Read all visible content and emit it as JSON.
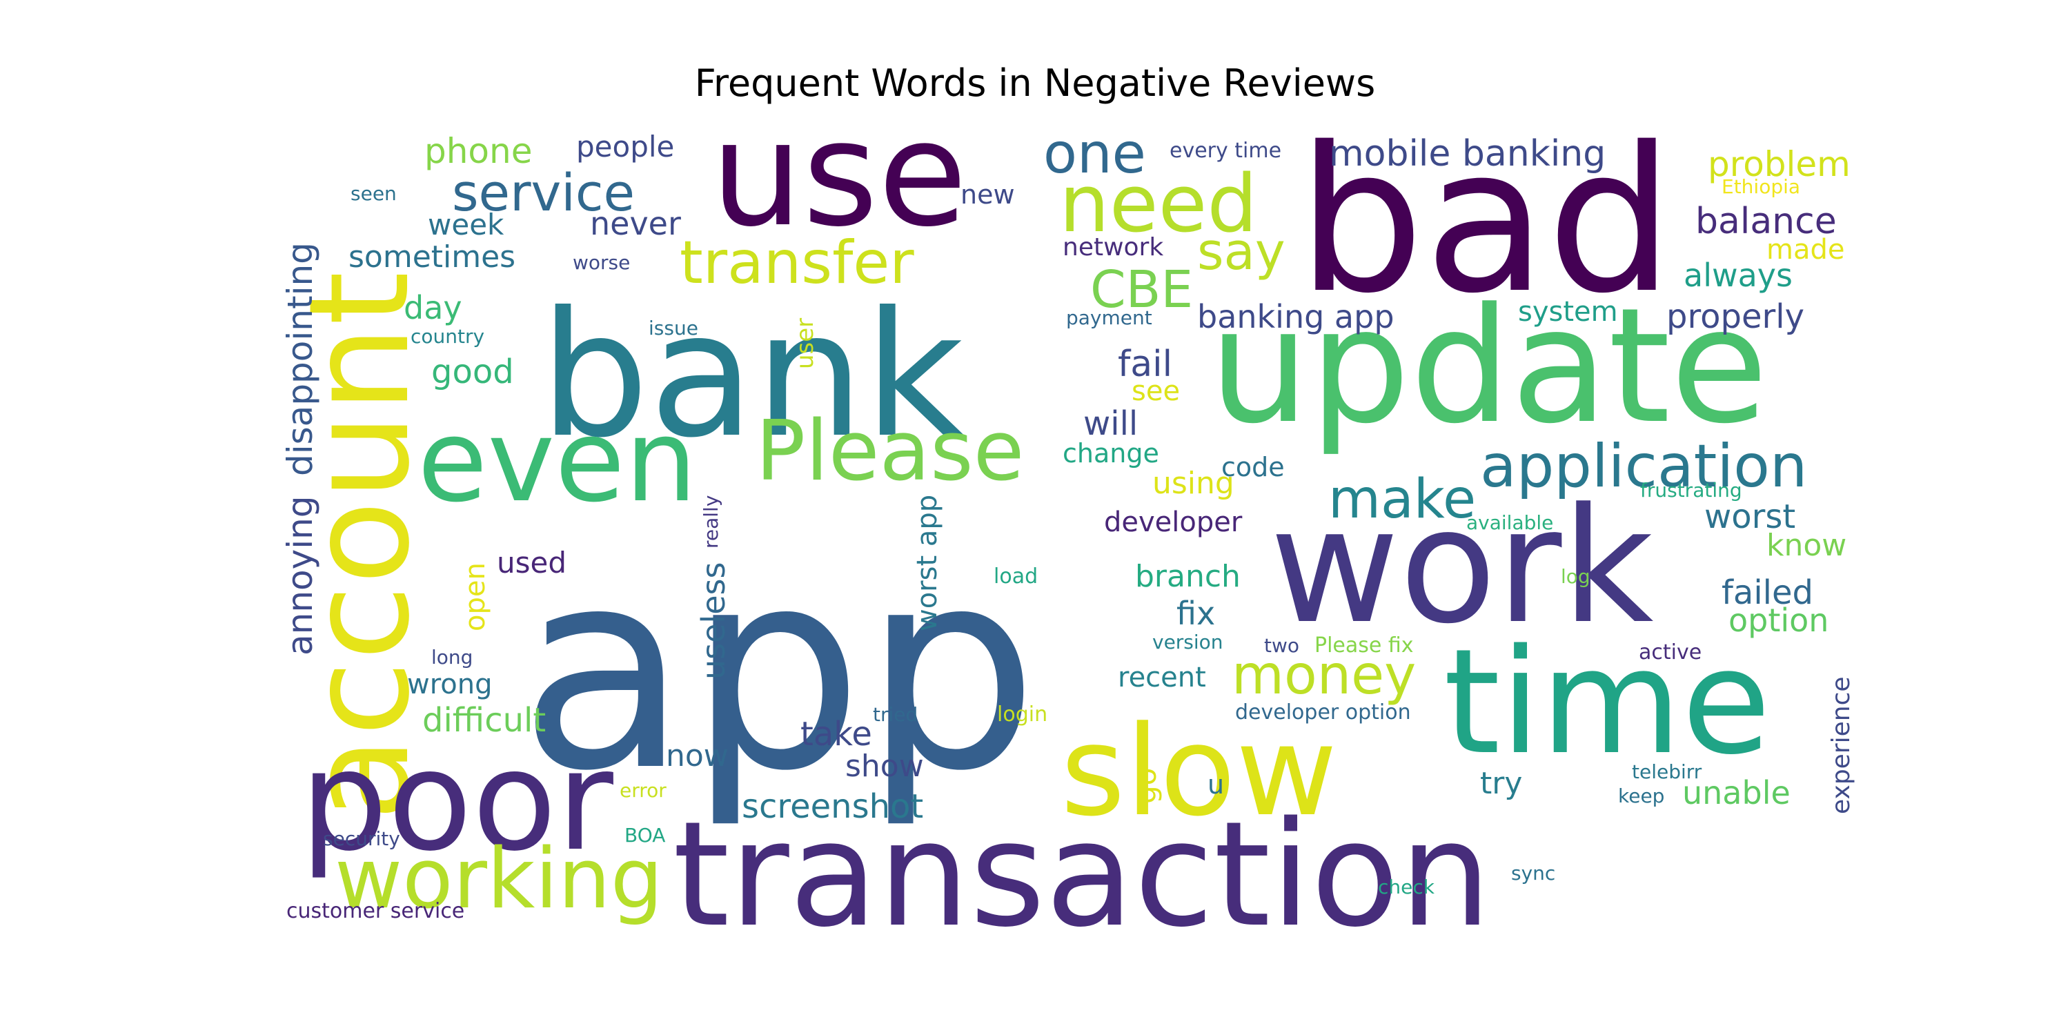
{
  "chart_data": {
    "type": "wordcloud",
    "title": "Frequent Words in Negative Reviews",
    "colormap": "viridis",
    "background": "#ffffff",
    "words": [
      {
        "text": "app",
        "color": "#355f8d"
      },
      {
        "text": "bank",
        "color": "#287d8e"
      },
      {
        "text": "bad",
        "color": "#440154"
      },
      {
        "text": "update",
        "color": "#4ac16d"
      },
      {
        "text": "transaction",
        "color": "#472d7b"
      },
      {
        "text": "use",
        "color": "#440154"
      },
      {
        "text": "account",
        "color": "#e5e419"
      },
      {
        "text": "work",
        "color": "#443983"
      },
      {
        "text": "time",
        "color": "#20a486"
      },
      {
        "text": "poor",
        "color": "#472d7b"
      },
      {
        "text": "even",
        "color": "#3bbb75"
      },
      {
        "text": "slow",
        "color": "#dde318"
      },
      {
        "text": "working",
        "color": "#b5de2b"
      },
      {
        "text": "Please",
        "color": "#7ad151"
      },
      {
        "text": "need",
        "color": "#b5de2b"
      },
      {
        "text": "application",
        "color": "#2a788e"
      },
      {
        "text": "transfer",
        "color": "#cde11d"
      },
      {
        "text": "service",
        "color": "#31688e"
      },
      {
        "text": "one",
        "color": "#31688e"
      },
      {
        "text": "money",
        "color": "#bddf26"
      },
      {
        "text": "make",
        "color": "#25858e"
      },
      {
        "text": "CBE",
        "color": "#7ad151"
      },
      {
        "text": "say",
        "color": "#bddf26"
      },
      {
        "text": "mobile banking",
        "color": "#3e4a89"
      },
      {
        "text": "screenshot",
        "color": "#2a788e"
      },
      {
        "text": "disappointing",
        "color": "#38588c"
      },
      {
        "text": "annoying",
        "color": "#3e4a89"
      },
      {
        "text": "useless",
        "color": "#31688e"
      },
      {
        "text": "worst app",
        "color": "#2a788e"
      },
      {
        "text": "problem",
        "color": "#d2e21b"
      },
      {
        "text": "balance",
        "color": "#472d7b"
      },
      {
        "text": "difficult",
        "color": "#6ccd5a"
      },
      {
        "text": "banking app",
        "color": "#3e4a89"
      },
      {
        "text": "properly",
        "color": "#3e4a89"
      },
      {
        "text": "application",
        "color": "#2a788e"
      },
      {
        "text": "phone",
        "color": "#86d549"
      },
      {
        "text": "people",
        "color": "#3e4a89"
      },
      {
        "text": "never",
        "color": "#3e4a89"
      },
      {
        "text": "week",
        "color": "#2c728e"
      },
      {
        "text": "sometimes",
        "color": "#2c728e"
      },
      {
        "text": "day",
        "color": "#3bbb75"
      },
      {
        "text": "good",
        "color": "#35b779"
      },
      {
        "text": "fail",
        "color": "#3e4a89"
      },
      {
        "text": "see",
        "color": "#dde318"
      },
      {
        "text": "will",
        "color": "#3e4a89"
      },
      {
        "text": "change",
        "color": "#22a785"
      },
      {
        "text": "code",
        "color": "#2c728e"
      },
      {
        "text": "using",
        "color": "#dde318"
      },
      {
        "text": "developer",
        "color": "#482677"
      },
      {
        "text": "branch",
        "color": "#25ab82"
      },
      {
        "text": "fix",
        "color": "#2c728e"
      },
      {
        "text": "recent",
        "color": "#26828e"
      },
      {
        "text": "take",
        "color": "#3e4a89"
      },
      {
        "text": "show",
        "color": "#3e4a89"
      },
      {
        "text": "now",
        "color": "#31688e"
      },
      {
        "text": "try",
        "color": "#287d8e"
      },
      {
        "text": "unable",
        "color": "#5ec962"
      },
      {
        "text": "worst",
        "color": "#2c728e"
      },
      {
        "text": "know",
        "color": "#7ad151"
      },
      {
        "text": "failed",
        "color": "#31688e"
      },
      {
        "text": "option",
        "color": "#5ec962"
      },
      {
        "text": "always",
        "color": "#1f9e89"
      },
      {
        "text": "made",
        "color": "#e5e419"
      },
      {
        "text": "system",
        "color": "#1f9e89"
      },
      {
        "text": "open",
        "color": "#e5e419"
      },
      {
        "text": "used",
        "color": "#482677"
      },
      {
        "text": "wrong",
        "color": "#2c728e"
      },
      {
        "text": "experience",
        "color": "#3e4a89"
      },
      {
        "text": "go",
        "color": "#dde318"
      },
      {
        "text": "u",
        "color": "#2c728e"
      },
      {
        "text": "user",
        "color": "#c8e020"
      },
      {
        "text": "really",
        "color": "#443983"
      },
      {
        "text": "new",
        "color": "#3e4a89"
      },
      {
        "text": "network",
        "color": "#472d7b"
      },
      {
        "text": "every time",
        "color": "#3e4a89"
      },
      {
        "text": "Ethiopia",
        "color": "#f1e51d"
      },
      {
        "text": "seen",
        "color": "#2c728e"
      },
      {
        "text": "worse",
        "color": "#3e4a89"
      },
      {
        "text": "issue",
        "color": "#2c728e"
      },
      {
        "text": "country",
        "color": "#25858e"
      },
      {
        "text": "payment",
        "color": "#31688e"
      },
      {
        "text": "frustrating",
        "color": "#25ab82"
      },
      {
        "text": "available",
        "color": "#2ab07f"
      },
      {
        "text": "log",
        "color": "#7ad151"
      },
      {
        "text": "load",
        "color": "#22a785"
      },
      {
        "text": "version",
        "color": "#26828e"
      },
      {
        "text": "two",
        "color": "#3e4a89"
      },
      {
        "text": "Please fix",
        "color": "#86d549"
      },
      {
        "text": "active",
        "color": "#472d7b"
      },
      {
        "text": "long",
        "color": "#3e4a89"
      },
      {
        "text": "tried",
        "color": "#31688e"
      },
      {
        "text": "login",
        "color": "#c8e020"
      },
      {
        "text": "developer option",
        "color": "#31688e"
      },
      {
        "text": "telebirr",
        "color": "#2a788e"
      },
      {
        "text": "keep",
        "color": "#2c728e"
      },
      {
        "text": "error",
        "color": "#c8e020"
      },
      {
        "text": "BOA",
        "color": "#22a785"
      },
      {
        "text": "security",
        "color": "#3e4a89"
      },
      {
        "text": "check",
        "color": "#22a785"
      },
      {
        "text": "sync",
        "color": "#2c728e"
      },
      {
        "text": "customer service",
        "color": "#482677"
      }
    ]
  }
}
